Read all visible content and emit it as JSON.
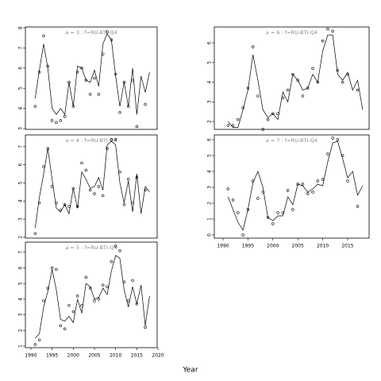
{
  "xlabel": "Year",
  "chart_data": [
    {
      "type": "line",
      "title": "a = 3 : f=RU-BTI-Q4",
      "x": [
        1991,
        1992,
        1993,
        1994,
        1995,
        1996,
        1997,
        1998,
        1999,
        2000,
        2001,
        2002,
        2003,
        2004,
        2005,
        2006,
        2007,
        2008,
        2009,
        2010,
        2011,
        2012,
        2013,
        2014,
        2015,
        2016,
        2017,
        2018
      ],
      "xlim": [
        1988.7,
        2019.8
      ],
      "ylim": [
        2.96,
        8.04
      ],
      "yticks": [
        3,
        4,
        5,
        6,
        7,
        8
      ],
      "series": [
        {
          "style": "points",
          "color": "#000000",
          "values": [
            4.1,
            5.8,
            7.6,
            6.1,
            3.4,
            3.3,
            3.4,
            3.6,
            5.3,
            4.1,
            5.8,
            6.0,
            5.4,
            4.7,
            5.5,
            4.7,
            6.7,
            7.8,
            7.4,
            5.7,
            3.8,
            5.3,
            4.1,
            5.4,
            3.1,
            null,
            4.2,
            null
          ]
        },
        {
          "style": "line",
          "color": "#000000",
          "values": [
            4.5,
            5.9,
            7.2,
            6.0,
            4.0,
            3.7,
            4.0,
            3.7,
            5.3,
            4.1,
            6.1,
            6.0,
            5.4,
            5.3,
            5.9,
            5.1,
            7.2,
            7.7,
            7.4,
            5.6,
            4.1,
            5.3,
            4.1,
            6.0,
            3.7,
            5.6,
            4.8,
            5.8
          ]
        }
      ]
    },
    {
      "type": "line",
      "title": "a = 4 : f=RU-BTI-Q4",
      "x": [
        1991,
        1992,
        1993,
        1994,
        1995,
        1996,
        1997,
        1998,
        1999,
        2000,
        2001,
        2002,
        2003,
        2004,
        2005,
        2006,
        2007,
        2008,
        2009,
        2010,
        2011,
        2012,
        2013,
        2014,
        2015,
        2016,
        2017,
        2018
      ],
      "xlim": [
        1988.7,
        2019.8
      ],
      "ylim": [
        1.95,
        7.65
      ],
      "yticks": [
        2,
        3,
        4,
        5,
        6,
        7
      ],
      "series": [
        {
          "style": "points",
          "color": "#000000",
          "values": [
            2.2,
            3.9,
            5.9,
            6.9,
            4.8,
            3.9,
            3.5,
            3.8,
            3.7,
            4.7,
            3.7,
            6.1,
            5.7,
            4.6,
            4.4,
            4.8,
            4.3,
            6.9,
            7.4,
            7.4,
            5.6,
            3.8,
            5.2,
            3.9,
            5.3,
            null,
            4.6,
            null
          ]
        },
        {
          "style": "line",
          "color": "#000000",
          "values": [
            2.5,
            4.2,
            5.5,
            6.9,
            5.2,
            3.6,
            3.4,
            3.8,
            3.3,
            4.7,
            3.6,
            5.6,
            5.2,
            4.7,
            4.8,
            5.3,
            4.6,
            7.1,
            7.3,
            7.1,
            5.0,
            3.9,
            5.1,
            3.4,
            5.5,
            3.3,
            4.8,
            4.5
          ]
        }
      ]
    },
    {
      "type": "line",
      "title": "a = 5 : f=RU-BTI-Q4",
      "x": [
        1991,
        1992,
        1993,
        1994,
        1995,
        1996,
        1997,
        1998,
        1999,
        2000,
        2001,
        2002,
        2003,
        2004,
        2005,
        2006,
        2007,
        2008,
        2009,
        2010,
        2011,
        2012,
        2013,
        2014,
        2015,
        2016,
        2017,
        2018
      ],
      "xlim": [
        1988.7,
        2019.8
      ],
      "ylim": [
        0.9,
        7.65
      ],
      "yticks": [
        1,
        2,
        3,
        4,
        5,
        6,
        7
      ],
      "xticks": [
        1990,
        1995,
        2000,
        2005,
        2010,
        2015,
        2020
      ],
      "series": [
        {
          "style": "points",
          "color": "#000000",
          "values": [
            1.1,
            1.4,
            3.9,
            4.7,
            6.0,
            5.9,
            2.3,
            2.1,
            3.6,
            3.2,
            4.2,
            3.6,
            5.4,
            4.7,
            3.9,
            4.0,
            4.9,
            4.8,
            6.4,
            7.4,
            7.1,
            5.1,
            3.9,
            5.2,
            3.7,
            null,
            2.2,
            null
          ]
        },
        {
          "style": "line",
          "color": "#000000",
          "values": [
            1.5,
            1.8,
            3.5,
            4.5,
            5.9,
            4.6,
            2.7,
            2.6,
            2.9,
            2.5,
            4.0,
            3.1,
            5.0,
            4.8,
            4.0,
            4.1,
            4.7,
            4.3,
            5.8,
            6.8,
            6.6,
            4.6,
            3.5,
            4.8,
            3.7,
            4.9,
            2.3,
            4.2
          ]
        }
      ]
    },
    {
      "type": "line",
      "title": "a = 6 : f=RU-BTI-Q4",
      "x": [
        1991,
        1992,
        1993,
        1994,
        1995,
        1996,
        1997,
        1998,
        1999,
        2000,
        2001,
        2002,
        2003,
        2004,
        2005,
        2006,
        2007,
        2008,
        2009,
        2010,
        2011,
        2012,
        2013,
        2014,
        2015,
        2016,
        2017,
        2018
      ],
      "xlim": [
        1988.25,
        2019.3
      ],
      "ylim": [
        1.6,
        6.81
      ],
      "yticks": [
        2,
        3,
        4,
        5,
        6
      ],
      "series": [
        {
          "style": "points",
          "color": "#000000",
          "values": [
            1.8,
            1.8,
            2.1,
            2.7,
            3.7,
            5.8,
            3.3,
            1.6,
            2.1,
            2.4,
            2.4,
            3.2,
            3.6,
            4.4,
            4.1,
            3.3,
            3.7,
            4.7,
            4.0,
            6.1,
            6.7,
            6.6,
            4.6,
            4.0,
            4.4,
            null,
            3.6,
            null
          ]
        },
        {
          "style": "line",
          "color": "#000000",
          "values": [
            2.0,
            1.7,
            1.7,
            2.6,
            3.6,
            5.4,
            4.1,
            2.6,
            2.2,
            2.4,
            2.1,
            3.5,
            3.0,
            4.4,
            4.1,
            3.6,
            3.7,
            4.4,
            4.0,
            5.6,
            6.4,
            6.4,
            4.4,
            4.1,
            4.5,
            3.6,
            4.1,
            2.6
          ]
        }
      ]
    },
    {
      "type": "line",
      "title": "a = 7 : f=RU-BTI-Q4",
      "x": [
        1991,
        1992,
        1993,
        1994,
        1995,
        1996,
        1997,
        1998,
        1999,
        2000,
        2001,
        2002,
        2003,
        2004,
        2005,
        2006,
        2007,
        2008,
        2009,
        2010,
        2011,
        2012,
        2013,
        2014,
        2015,
        2016,
        2017,
        2018
      ],
      "xlim": [
        1988.25,
        2019.3
      ],
      "ylim": [
        -0.2,
        6.3
      ],
      "yticks": [
        0,
        1,
        2,
        3,
        4,
        5,
        6
      ],
      "xticks": [
        1990,
        1995,
        2000,
        2005,
        2010,
        2015
      ],
      "series": [
        {
          "style": "points",
          "color": "#000000",
          "values": [
            2.9,
            2.2,
            1.4,
            0.0,
            1.6,
            3.4,
            2.3,
            2.7,
            1.1,
            0.7,
            1.4,
            1.4,
            2.8,
            1.6,
            3.2,
            3.2,
            2.6,
            2.7,
            3.4,
            3.5,
            5.1,
            6.1,
            6.0,
            5.0,
            3.4,
            null,
            1.8,
            null
          ]
        },
        {
          "style": "line",
          "color": "#000000",
          "values": [
            2.4,
            1.6,
            0.8,
            0.3,
            1.6,
            3.3,
            4.0,
            3.0,
            1.1,
            0.9,
            1.2,
            1.2,
            2.4,
            1.9,
            3.2,
            3.1,
            2.7,
            2.9,
            3.2,
            3.1,
            4.6,
            5.8,
            5.9,
            4.8,
            3.6,
            4.0,
            2.5,
            3.1
          ]
        }
      ]
    }
  ]
}
